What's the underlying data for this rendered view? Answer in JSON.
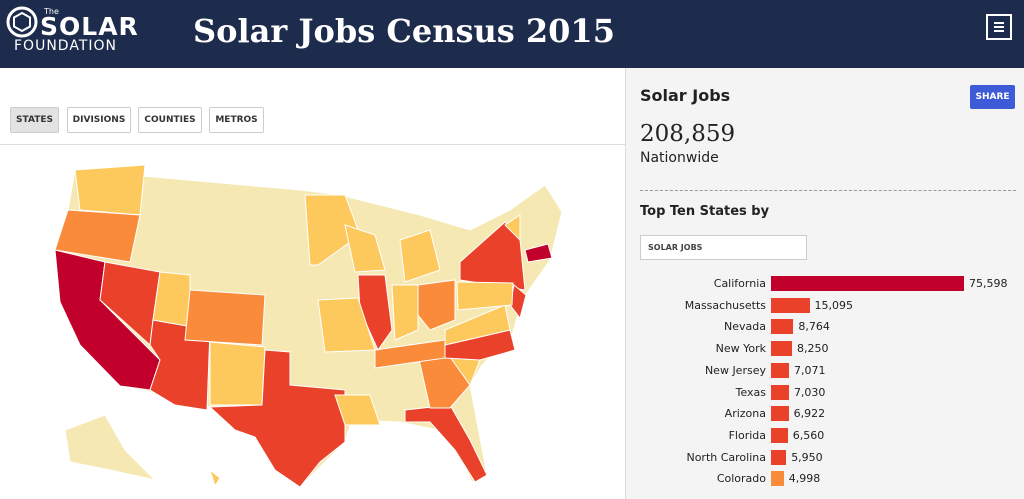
{
  "header": {
    "logo_small": "The",
    "logo_main": "SOLAR",
    "logo_sub": "FOUNDATION",
    "title": "Solar Jobs Census 2015"
  },
  "tabs": [
    "STATES",
    "DIVISIONS",
    "COUNTIES",
    "METROS"
  ],
  "sidebar": {
    "heading": "Solar Jobs",
    "share": "SHARE",
    "total": "208,859",
    "total_caption": "Nationwide",
    "top_heading": "Top Ten States by",
    "select": "SOLAR JOBS"
  },
  "chart_data": {
    "type": "bar",
    "orientation": "horizontal",
    "categories": [
      "California",
      "Massachusetts",
      "Nevada",
      "New York",
      "New Jersey",
      "Texas",
      "Arizona",
      "Florida",
      "North Carolina",
      "Colorado"
    ],
    "values": [
      75598,
      15095,
      8764,
      8250,
      7071,
      7030,
      6922,
      6560,
      5950,
      4998
    ],
    "value_labels": [
      "75,598",
      "15,095",
      "8,764",
      "8,250",
      "7,071",
      "7,030",
      "6,922",
      "6,560",
      "5,950",
      "4,998"
    ],
    "colors": [
      "#c1002b",
      "#ea412b",
      "#ea412b",
      "#ea412b",
      "#ea412b",
      "#ea412b",
      "#ea412b",
      "#ea412b",
      "#ea412b",
      "#f88c3a"
    ],
    "xlim": [
      0,
      75598
    ]
  }
}
